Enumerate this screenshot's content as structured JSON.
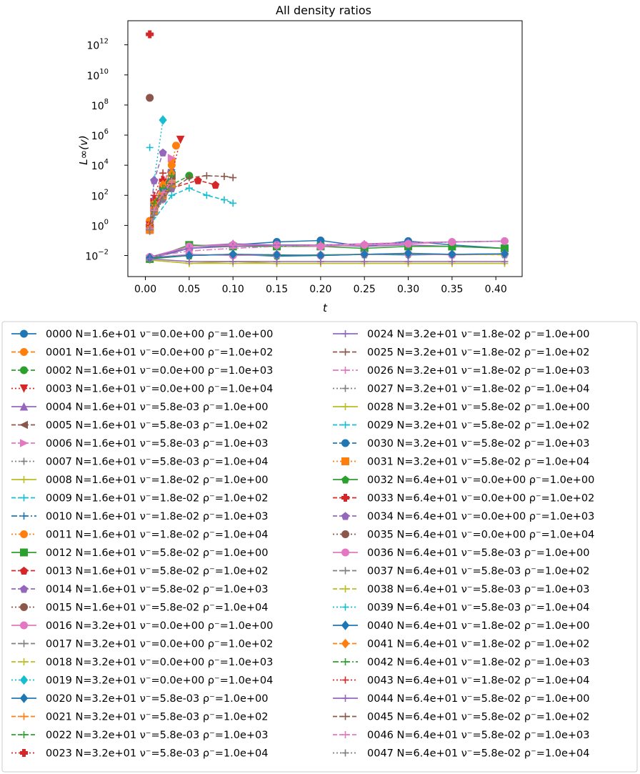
{
  "chart_data": {
    "type": "line",
    "title": "All density ratios",
    "xlabel": "t",
    "ylabel": "L∞(v)",
    "x_ticks": [
      "0.00",
      "0.05",
      "0.10",
      "0.15",
      "0.20",
      "0.25",
      "0.30",
      "0.35",
      "0.40"
    ],
    "y_ticks": [
      {
        "base": "10",
        "exp": "12"
      },
      {
        "base": "10",
        "exp": "10"
      },
      {
        "base": "10",
        "exp": "8"
      },
      {
        "base": "10",
        "exp": "6"
      },
      {
        "base": "10",
        "exp": "4"
      },
      {
        "base": "10",
        "exp": "2"
      },
      {
        "base": "10",
        "exp": "0"
      },
      {
        "base": "10",
        "exp": "−2"
      }
    ],
    "xlim": [
      -0.02,
      0.43
    ],
    "ylim_log10": [
      -3.4,
      13.6
    ],
    "y_scale": "log",
    "legend_position": "below",
    "grid": false,
    "colors": [
      "#1f77b4",
      "#ff7f0e",
      "#2ca02c",
      "#d62728",
      "#9467bd",
      "#8c564b",
      "#e377c2",
      "#7f7f7f",
      "#bcbd22",
      "#17becf"
    ],
    "series_names": [
      "0000 N=1.6e+01 ν⁻=0.0e+00 ρ⁻=1.0e+00",
      "0001 N=1.6e+01 ν⁻=0.0e+00 ρ⁻=1.0e+02",
      "0002 N=1.6e+01 ν⁻=0.0e+00 ρ⁻=1.0e+03",
      "0003 N=1.6e+01 ν⁻=0.0e+00 ρ⁻=1.0e+04",
      "0004 N=1.6e+01 ν⁻=5.8e-03 ρ⁻=1.0e+00",
      "0005 N=1.6e+01 ν⁻=5.8e-03 ρ⁻=1.0e+02",
      "0006 N=1.6e+01 ν⁻=5.8e-03 ρ⁻=1.0e+03",
      "0007 N=1.6e+01 ν⁻=5.8e-03 ρ⁻=1.0e+04",
      "0008 N=1.6e+01 ν⁻=1.8e-02 ρ⁻=1.0e+00",
      "0009 N=1.6e+01 ν⁻=1.8e-02 ρ⁻=1.0e+02",
      "0010 N=1.6e+01 ν⁻=1.8e-02 ρ⁻=1.0e+03",
      "0011 N=1.6e+01 ν⁻=1.8e-02 ρ⁻=1.0e+04",
      "0012 N=1.6e+01 ν⁻=5.8e-02 ρ⁻=1.0e+00",
      "0013 N=1.6e+01 ν⁻=5.8e-02 ρ⁻=1.0e+02",
      "0014 N=1.6e+01 ν⁻=5.8e-02 ρ⁻=1.0e+03",
      "0015 N=1.6e+01 ν⁻=5.8e-02 ρ⁻=1.0e+04",
      "0016 N=3.2e+01 ν⁻=0.0e+00 ρ⁻=1.0e+00",
      "0017 N=3.2e+01 ν⁻=0.0e+00 ρ⁻=1.0e+02",
      "0018 N=3.2e+01 ν⁻=0.0e+00 ρ⁻=1.0e+03",
      "0019 N=3.2e+01 ν⁻=0.0e+00 ρ⁻=1.0e+04",
      "0020 N=3.2e+01 ν⁻=5.8e-03 ρ⁻=1.0e+00",
      "0021 N=3.2e+01 ν⁻=5.8e-03 ρ⁻=1.0e+02",
      "0022 N=3.2e+01 ν⁻=5.8e-03 ρ⁻=1.0e+03",
      "0023 N=3.2e+01 ν⁻=5.8e-03 ρ⁻=1.0e+04",
      "0024 N=3.2e+01 ν⁻=1.8e-02 ρ⁻=1.0e+00",
      "0025 N=3.2e+01 ν⁻=1.8e-02 ρ⁻=1.0e+02",
      "0026 N=3.2e+01 ν⁻=1.8e-02 ρ⁻=1.0e+03",
      "0027 N=3.2e+01 ν⁻=1.8e-02 ρ⁻=1.0e+04",
      "0028 N=3.2e+01 ν⁻=5.8e-02 ρ⁻=1.0e+00",
      "0029 N=3.2e+01 ν⁻=5.8e-02 ρ⁻=1.0e+02",
      "0030 N=3.2e+01 ν⁻=5.8e-02 ρ⁻=1.0e+03",
      "0031 N=3.2e+01 ν⁻=5.8e-02 ρ⁻=1.0e+04",
      "0032 N=6.4e+01 ν⁻=0.0e+00 ρ⁻=1.0e+00",
      "0033 N=6.4e+01 ν⁻=0.0e+00 ρ⁻=1.0e+02",
      "0034 N=6.4e+01 ν⁻=0.0e+00 ρ⁻=1.0e+03",
      "0035 N=6.4e+01 ν⁻=0.0e+00 ρ⁻=1.0e+04",
      "0036 N=6.4e+01 ν⁻=5.8e-03 ρ⁻=1.0e+00",
      "0037 N=6.4e+01 ν⁻=5.8e-03 ρ⁻=1.0e+02",
      "0038 N=6.4e+01 ν⁻=5.8e-03 ρ⁻=1.0e+03",
      "0039 N=6.4e+01 ν⁻=5.8e-03 ρ⁻=1.0e+04",
      "0040 N=6.4e+01 ν⁻=1.8e-02 ρ⁻=1.0e+00",
      "0041 N=6.4e+01 ν⁻=1.8e-02 ρ⁻=1.0e+02",
      "0042 N=6.4e+01 ν⁻=1.8e-02 ρ⁻=1.0e+03",
      "0043 N=6.4e+01 ν⁻=1.8e-02 ρ⁻=1.0e+04",
      "0044 N=6.4e+01 ν⁻=5.8e-02 ρ⁻=1.0e+00",
      "0045 N=6.4e+01 ν⁻=5.8e-02 ρ⁻=1.0e+02",
      "0046 N=6.4e+01 ν⁻=5.8e-02 ρ⁻=1.0e+03",
      "0047 N=6.4e+01 ν⁻=5.8e-02 ρ⁻=1.0e+04"
    ],
    "series": [
      {
        "x": [
          0.005,
          0.05,
          0.1,
          0.15,
          0.2,
          0.25,
          0.3,
          0.35,
          0.41
        ],
        "y": [
          0.006,
          0.03,
          0.05,
          0.08,
          0.1,
          0.04,
          0.09,
          0.05,
          0.03
        ]
      },
      {
        "x": [
          0.005,
          0.01,
          0.02,
          0.03
        ],
        "y": [
          2,
          30,
          300,
          20000
        ]
      },
      {
        "x": [
          0.005,
          0.01,
          0.02,
          0.03,
          0.05
        ],
        "y": [
          1,
          20,
          100,
          500,
          2000
        ]
      },
      {
        "x": [
          0.005,
          0.01,
          0.02,
          0.03,
          0.04
        ],
        "y": [
          1,
          10,
          100,
          2000,
          500000
        ]
      },
      {
        "x": [
          0.005,
          0.05,
          0.1,
          0.15,
          0.2,
          0.25,
          0.3,
          0.35,
          0.41
        ],
        "y": [
          0.006,
          0.04,
          0.06,
          0.05,
          0.05,
          0.04,
          0.05,
          0.04,
          0.03
        ]
      },
      {
        "x": [
          0.005,
          0.01,
          0.02,
          0.03
        ],
        "y": [
          0.6,
          10,
          200,
          2000
        ]
      },
      {
        "x": [
          0.005,
          0.01,
          0.02,
          0.03
        ],
        "y": [
          0.7,
          20,
          300,
          30000
        ]
      },
      {
        "x": [
          0.005,
          0.01,
          0.02,
          0.03
        ],
        "y": [
          0.5,
          5,
          100,
          1000
        ]
      },
      {
        "x": [
          0.005,
          0.05,
          0.1,
          0.15,
          0.2,
          0.25,
          0.3,
          0.35,
          0.41
        ],
        "y": [
          0.005,
          0.003,
          0.004,
          0.003,
          0.003,
          0.003,
          0.003,
          0.003,
          0.003
        ]
      },
      {
        "x": [
          0.005,
          0.01,
          0.02,
          0.03
        ],
        "y": [
          0.5,
          10,
          80,
          400
        ]
      },
      {
        "x": [
          0.005,
          0.01,
          0.02,
          0.03
        ],
        "y": [
          0.6,
          20,
          200,
          5000
        ]
      },
      {
        "x": [
          0.005,
          0.01,
          0.02,
          0.03,
          0.035
        ],
        "y": [
          0.8,
          30,
          300,
          10000,
          200000
        ]
      },
      {
        "x": [
          0.005,
          0.05,
          0.1,
          0.15,
          0.2,
          0.25,
          0.3,
          0.35,
          0.41
        ],
        "y": [
          0.006,
          0.05,
          0.04,
          0.04,
          0.04,
          0.03,
          0.04,
          0.04,
          0.03
        ]
      },
      {
        "x": [
          0.005,
          0.01,
          0.02,
          0.03,
          0.06,
          0.08
        ],
        "y": [
          1,
          20,
          100,
          300,
          1000,
          500
        ]
      },
      {
        "x": [
          0.005,
          0.01,
          0.02,
          0.03
        ],
        "y": [
          0.5,
          8,
          60,
          300
        ]
      },
      {
        "x": [
          0.005,
          0.01,
          0.02,
          0.03
        ],
        "y": [
          0.6,
          10,
          100,
          800
        ]
      },
      {
        "x": [
          0.005,
          0.05,
          0.1,
          0.15,
          0.2,
          0.25,
          0.3,
          0.35,
          0.41
        ],
        "y": [
          0.008,
          0.04,
          0.05,
          0.05,
          0.04,
          0.05,
          0.06,
          0.08,
          0.09
        ]
      },
      {
        "x": [
          0.005,
          0.01,
          0.02,
          0.03
        ],
        "y": [
          0.5,
          8,
          80,
          500
        ]
      },
      {
        "x": [
          0.005,
          0.01,
          0.02,
          0.03
        ],
        "y": [
          0.6,
          10,
          100,
          1000
        ]
      },
      {
        "x": [
          0.005,
          0.01,
          0.02
        ],
        "y": [
          1,
          1000,
          10000000
        ]
      },
      {
        "x": [
          0.005,
          0.05,
          0.1,
          0.15,
          0.2,
          0.25,
          0.3,
          0.35,
          0.41
        ],
        "y": [
          0.007,
          0.01,
          0.012,
          0.009,
          0.01,
          0.012,
          0.011,
          0.012,
          0.013
        ]
      },
      {
        "x": [
          0.005,
          0.01,
          0.02,
          0.03
        ],
        "y": [
          0.5,
          10,
          100,
          300
        ]
      },
      {
        "x": [
          0.005,
          0.01,
          0.02,
          0.03
        ],
        "y": [
          0.5,
          10,
          80,
          400
        ]
      },
      {
        "x": [
          0.005
        ],
        "y": [
          5000000000000
        ]
      },
      {
        "x": [
          0.005,
          0.05,
          0.1,
          0.15,
          0.2,
          0.25,
          0.3,
          0.35,
          0.41
        ],
        "y": [
          0.008,
          0.03,
          0.04,
          0.05,
          0.05,
          0.06,
          0.07,
          0.08,
          0.09
        ]
      },
      {
        "x": [
          0.005,
          0.02,
          0.05,
          0.07,
          0.09,
          0.1
        ],
        "y": [
          1,
          100,
          1500,
          2000,
          1800,
          1500
        ]
      },
      {
        "x": [
          0.005,
          0.05,
          0.1,
          0.15,
          0.2,
          0.25,
          0.3,
          0.35,
          0.41
        ],
        "y": [
          0.008,
          0.02,
          0.03,
          0.04,
          0.05,
          0.06,
          0.07,
          0.08,
          0.09
        ]
      },
      {
        "x": [
          0.005,
          0.01,
          0.02,
          0.03
        ],
        "y": [
          0.4,
          5,
          50,
          300
        ]
      },
      {
        "x": [
          0.005,
          0.05,
          0.1,
          0.15,
          0.2,
          0.25,
          0.3,
          0.35,
          0.41
        ],
        "y": [
          0.005,
          0.003,
          0.003,
          0.003,
          0.003,
          0.003,
          0.003,
          0.003,
          0.003
        ]
      },
      {
        "x": [
          0.005,
          0.03,
          0.05,
          0.07,
          0.09,
          0.1
        ],
        "y": [
          1,
          100,
          300,
          100,
          50,
          30
        ]
      },
      {
        "x": [
          0.005,
          0.01,
          0.02,
          0.03
        ],
        "y": [
          0.5,
          20,
          300,
          3000
        ]
      },
      {
        "x": [
          0.005,
          0.01,
          0.02,
          0.03
        ],
        "y": [
          0.5,
          10,
          100,
          500
        ]
      },
      {
        "x": [
          0.005,
          0.05,
          0.1,
          0.15,
          0.2,
          0.25,
          0.3,
          0.35,
          0.41
        ],
        "y": [
          0.006,
          0.01,
          0.012,
          0.01,
          0.011,
          0.012,
          0.013,
          0.012,
          0.012
        ]
      },
      {
        "x": [
          0.005,
          0.01,
          0.02
        ],
        "y": [
          1,
          50,
          1000
        ]
      },
      {
        "x": [
          0.005,
          0.01,
          0.02
        ],
        "y": [
          1,
          1000,
          70000
        ]
      },
      {
        "x": [
          0.005
        ],
        "y": [
          300000000
        ]
      },
      {
        "x": [
          0.005,
          0.05,
          0.1,
          0.15,
          0.2,
          0.25,
          0.3,
          0.35,
          0.41
        ],
        "y": [
          0.007,
          0.012,
          0.01,
          0.011,
          0.01,
          0.012,
          0.013,
          0.011,
          0.012
        ]
      },
      {
        "x": [
          0.005,
          0.01,
          0.02,
          0.03
        ],
        "y": [
          0.5,
          8,
          80,
          500
        ]
      },
      {
        "x": [
          0.005,
          0.05,
          0.1,
          0.15,
          0.2,
          0.25,
          0.3,
          0.35,
          0.41
        ],
        "y": [
          0.007,
          0.01,
          0.012,
          0.011,
          0.01,
          0.012,
          0.013,
          0.012,
          0.011
        ]
      },
      {
        "x": [
          0.005
        ],
        "y": [
          150000
        ]
      },
      {
        "x": [
          0.005,
          0.05,
          0.1,
          0.15,
          0.2,
          0.25,
          0.3,
          0.35,
          0.41
        ],
        "y": [
          0.007,
          0.01,
          0.012,
          0.011,
          0.01,
          0.012,
          0.014,
          0.012,
          0.013
        ]
      },
      {
        "x": [
          0.005,
          0.01,
          0.02,
          0.03
        ],
        "y": [
          1,
          30,
          500,
          3000
        ]
      },
      {
        "x": [
          0.005,
          0.01,
          0.02,
          0.03
        ],
        "y": [
          1,
          30,
          300,
          2000
        ]
      },
      {
        "x": [
          0.005,
          0.01,
          0.02
        ],
        "y": [
          1,
          100,
          3000
        ]
      },
      {
        "x": [
          0.005,
          0.05,
          0.1,
          0.15,
          0.2,
          0.25,
          0.3,
          0.35,
          0.41
        ],
        "y": [
          0.006,
          0.004,
          0.004,
          0.004,
          0.004,
          0.004,
          0.004,
          0.004,
          0.004
        ]
      },
      {
        "x": [
          0.005,
          0.01,
          0.02,
          0.03
        ],
        "y": [
          0.5,
          10,
          100,
          600
        ]
      },
      {
        "x": [
          0.005,
          0.01,
          0.02,
          0.03
        ],
        "y": [
          0.6,
          10,
          150,
          800
        ]
      },
      {
        "x": [
          0.005,
          0.01,
          0.02,
          0.03
        ],
        "y": [
          0.5,
          5,
          50,
          300
        ]
      }
    ]
  }
}
